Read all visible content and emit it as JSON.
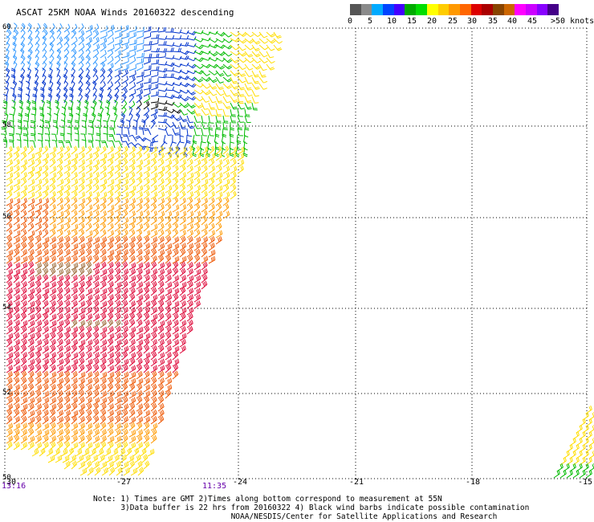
{
  "title": "ASCAT 25KM NOAA Winds 20160322 descending",
  "legend": {
    "swatches": [
      "#555555",
      "#8a8a8a",
      "#00aaff",
      "#0044ff",
      "#4400ff",
      "#00aa00",
      "#00dd00",
      "#ffff00",
      "#ffcc00",
      "#ff9900",
      "#ff6600",
      "#dd0000",
      "#aa0000",
      "#884400",
      "#cc6600",
      "#ff00ff",
      "#cc00ff",
      "#8800ff",
      "#440088"
    ],
    "labels": [
      "0",
      "5",
      "10",
      "15",
      "20",
      "25",
      "30",
      "35",
      "40",
      "45",
      ">50 knots"
    ]
  },
  "axes": {
    "lon_ticks": [
      "-30",
      "-27",
      "-24",
      "-21",
      "-18",
      "-15"
    ],
    "lat_ticks": [
      "60",
      "58",
      "56",
      "54",
      "52",
      "50"
    ]
  },
  "times": {
    "left": "13:16",
    "mid": "11:35"
  },
  "notes": [
    "Note: 1) Times are GMT 2)Times along bottom correspond to measurement at 55N",
    "      3)Data buffer is 22 hrs from 20160322 4) Black wind barbs indicate possible contamination",
    "                              NOAA/NESDIS/Center for Satellite Applications and Research"
  ],
  "colors": {
    "lt5": "#000000",
    "5_10": "#0033cc",
    "10_15": "#3399ff",
    "15_20": "#00bb00",
    "20_25": "#ffdd00",
    "25_30": "#ff9900",
    "30_35": "#ee5500",
    "35_40": "#dd0033",
    "40_45": "#996633"
  }
}
